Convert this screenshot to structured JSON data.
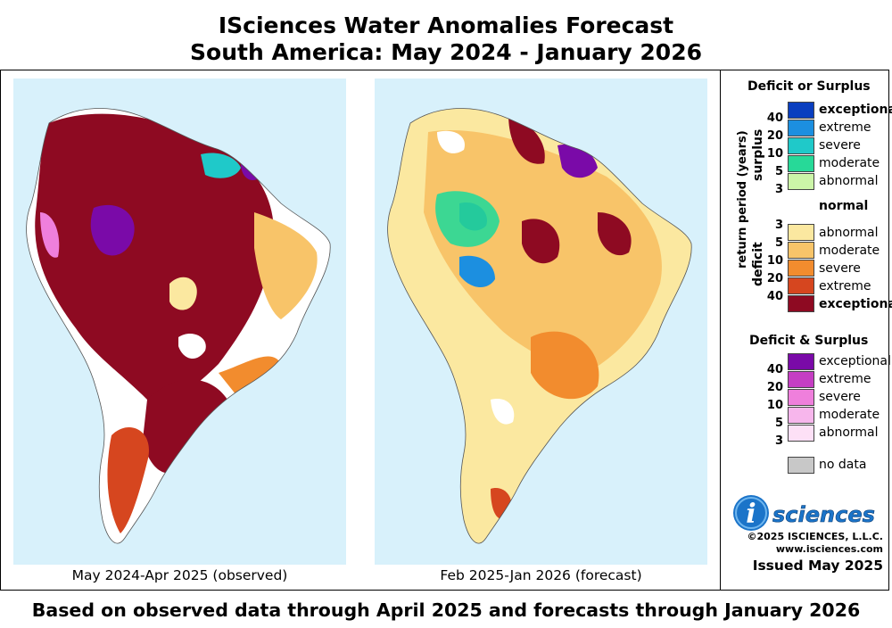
{
  "title_line1": "ISciences Water Anomalies Forecast",
  "title_line2": "South America: May 2024 - January 2026",
  "maps": [
    {
      "caption": "May 2024-Apr 2025 (observed)"
    },
    {
      "caption": "Feb 2025-Jan 2026 (forecast)"
    }
  ],
  "legend": {
    "deficit_or_surplus_title": "Deficit or Surplus",
    "axis_label": "return period (years)",
    "surplus_label": "surplus",
    "deficit_label": "deficit",
    "surplus_items": [
      {
        "label": "exceptional",
        "color": "#0a3ebf"
      },
      {
        "label": "extreme",
        "color": "#1c8fe0"
      },
      {
        "label": "severe",
        "color": "#1fc9c9"
      },
      {
        "label": "moderate",
        "color": "#27d998"
      },
      {
        "label": "abnormal",
        "color": "#ccf5a8"
      }
    ],
    "normal_label": "normal",
    "deficit_items": [
      {
        "label": "abnormal",
        "color": "#fbe8a0"
      },
      {
        "label": "moderate",
        "color": "#f8c469"
      },
      {
        "label": "severe",
        "color": "#f28c2e"
      },
      {
        "label": "extreme",
        "color": "#d6461f"
      },
      {
        "label": "exceptional",
        "color": "#8e0a22"
      }
    ],
    "return_periods_surplus": [
      "40",
      "20",
      "10",
      "5",
      "3"
    ],
    "return_periods_deficit": [
      "3",
      "5",
      "10",
      "20",
      "40"
    ],
    "both_title": "Deficit & Surplus",
    "both_items": [
      {
        "label": "exceptional",
        "color": "#7a0aa8"
      },
      {
        "label": "extreme",
        "color": "#c53ec3"
      },
      {
        "label": "severe",
        "color": "#ef7fdc"
      },
      {
        "label": "moderate",
        "color": "#f7b6ec"
      },
      {
        "label": "abnormal",
        "color": "#fde0f6"
      }
    ],
    "return_periods_both": [
      "40",
      "20",
      "10",
      "5",
      "3"
    ],
    "no_data_label": "no data",
    "no_data_color": "#c8c8c8"
  },
  "logo_text": "sciences",
  "logo_i": "i",
  "copyright": "©2025 ISCIENCES, L.L.C.",
  "website": "www.isciences.com",
  "issued": "Issued May 2025",
  "footer": "Based on observed data through April 2025 and forecasts through January 2026"
}
